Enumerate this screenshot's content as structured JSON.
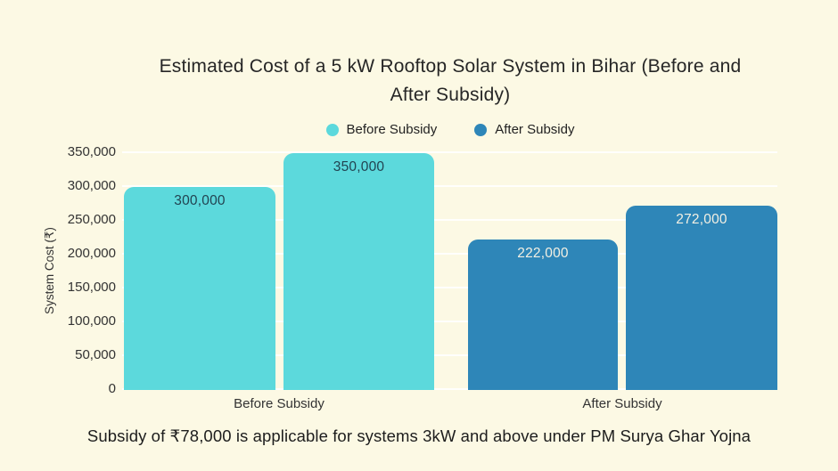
{
  "title": {
    "line1": "Estimated Cost of a 5 kW Rooftop Solar System in Bihar (Before and",
    "line2": "After Subsidy)"
  },
  "legend": [
    {
      "label": "Before Subsidy",
      "color": "#5CD9DC"
    },
    {
      "label": "After Subsidy",
      "color": "#2E86B8"
    }
  ],
  "footnote": "Subsidy of ₹78,000 is applicable for systems 3kW and above under PM Surya Ghar Yojna",
  "chart_data": {
    "type": "bar",
    "title": "Estimated Cost of a 5 kW Rooftop Solar System in Bihar (Before and After Subsidy)",
    "ylabel": "System Cost (₹)",
    "xlabel": "",
    "ylim": [
      0,
      350000
    ],
    "yticks": [
      "350,000",
      "300,000",
      "250,000",
      "200,000",
      "150,000",
      "100,000",
      "50,000",
      "0"
    ],
    "grid": true,
    "legend_position": "top",
    "groups": [
      {
        "category": "Before Subsidy",
        "color": "#5CD9DC",
        "label_color": "#224351",
        "bars": [
          {
            "value": 300000,
            "label": "300,000"
          },
          {
            "value": 350000,
            "label": "350,000"
          }
        ]
      },
      {
        "category": "After Subsidy",
        "color": "#2E86B8",
        "label_color": "#F3F0E3",
        "bars": [
          {
            "value": 222000,
            "label": "222,000"
          },
          {
            "value": 272000,
            "label": "272,000"
          }
        ]
      }
    ]
  }
}
